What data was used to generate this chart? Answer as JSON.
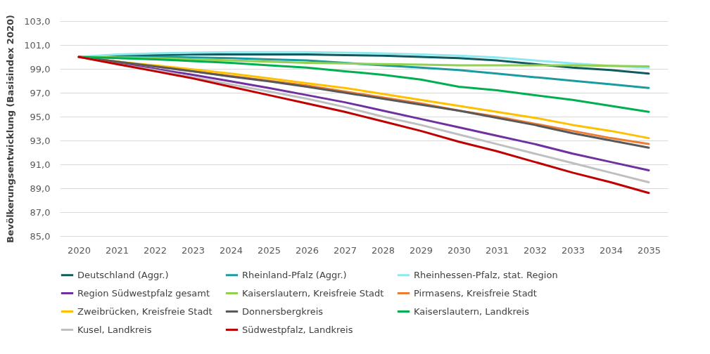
{
  "chart_data": {
    "type": "line",
    "ylabel": "Bevölkerungsentwicklung (Basisindex 2020)",
    "categories": [
      "2020",
      "2021",
      "2022",
      "2023",
      "2024",
      "2025",
      "2026",
      "2027",
      "2028",
      "2029",
      "2030",
      "2031",
      "2032",
      "2033",
      "2034",
      "2035"
    ],
    "ylim": [
      85,
      103
    ],
    "yticks": [
      {
        "value": 85,
        "label": "85,0"
      },
      {
        "value": 87,
        "label": "87,0"
      },
      {
        "value": 89,
        "label": "89,0"
      },
      {
        "value": 91,
        "label": "91,0"
      },
      {
        "value": 93,
        "label": "93,0"
      },
      {
        "value": 95,
        "label": "95,0"
      },
      {
        "value": 97,
        "label": "97,0"
      },
      {
        "value": 99,
        "label": "99,0"
      },
      {
        "value": 101,
        "label": "101,0"
      },
      {
        "value": 103,
        "label": "103,0"
      }
    ],
    "grid": "y",
    "legend": "bottom",
    "marker": "none",
    "line_style": "solid",
    "series": [
      {
        "name": "Deutschland (Aggr.)",
        "color": "#0e5a5e",
        "values": [
          100,
          100.1,
          100.15,
          100.2,
          100.2,
          100.2,
          100.2,
          100.15,
          100.1,
          100.0,
          99.9,
          99.7,
          99.4,
          99.1,
          98.9,
          98.6
        ]
      },
      {
        "name": "Rheinland-Pfalz (Aggr.)",
        "color": "#1a9ba0",
        "values": [
          100,
          100,
          100,
          99.95,
          99.9,
          99.8,
          99.7,
          99.5,
          99.3,
          99.1,
          98.9,
          98.6,
          98.3,
          98.0,
          97.7,
          97.4
        ]
      },
      {
        "name": "Rheinhessen-Pfalz, stat. Region",
        "color": "#8ee8f0",
        "values": [
          100,
          100.2,
          100.3,
          100.35,
          100.4,
          100.4,
          100.4,
          100.35,
          100.3,
          100.2,
          100.1,
          99.95,
          99.7,
          99.45,
          99.25,
          99.1
        ]
      },
      {
        "name": "Region Südwestpfalz gesamt",
        "color": "#7030a0",
        "values": [
          100,
          99.5,
          99.0,
          98.5,
          97.95,
          97.4,
          96.8,
          96.2,
          95.5,
          94.8,
          94.1,
          93.4,
          92.7,
          91.9,
          91.2,
          90.5
        ]
      },
      {
        "name": "Kaiserslautern, Kreisfreie Stadt",
        "color": "#92d050",
        "values": [
          100,
          99.95,
          99.9,
          99.8,
          99.7,
          99.6,
          99.5,
          99.45,
          99.4,
          99.35,
          99.3,
          99.3,
          99.3,
          99.3,
          99.25,
          99.2
        ]
      },
      {
        "name": "Pirmasens, Kreisfreie Stadt",
        "color": "#ed7d31",
        "values": [
          100,
          99.6,
          99.2,
          98.8,
          98.4,
          98.0,
          97.6,
          97.1,
          96.6,
          96.1,
          95.5,
          95.0,
          94.4,
          93.8,
          93.2,
          92.7
        ]
      },
      {
        "name": "Zweibrücken, Kreisfreie Stadt",
        "color": "#ffc000",
        "values": [
          100,
          99.6,
          99.3,
          98.95,
          98.6,
          98.2,
          97.8,
          97.4,
          96.9,
          96.4,
          95.9,
          95.4,
          94.9,
          94.3,
          93.8,
          93.2
        ]
      },
      {
        "name": "Donnersbergkreis",
        "color": "#595959",
        "values": [
          100,
          99.6,
          99.2,
          98.8,
          98.35,
          97.95,
          97.5,
          97.0,
          96.5,
          96.0,
          95.5,
          94.9,
          94.3,
          93.6,
          93.0,
          92.4
        ]
      },
      {
        "name": "Kaiserslautern, Landkreis",
        "color": "#00b050",
        "values": [
          100,
          99.9,
          99.8,
          99.65,
          99.5,
          99.3,
          99.1,
          98.8,
          98.5,
          98.1,
          97.5,
          97.2,
          96.8,
          96.4,
          95.9,
          95.4
        ]
      },
      {
        "name": "Kusel, Landkreis",
        "color": "#bfbfbf",
        "values": [
          100,
          99.4,
          98.9,
          98.3,
          97.7,
          97.1,
          96.5,
          95.8,
          95.0,
          94.3,
          93.5,
          92.7,
          91.9,
          91.1,
          90.3,
          89.5
        ]
      },
      {
        "name": "Südwestpfalz, Landkreis",
        "color": "#c00000",
        "values": [
          100,
          99.4,
          98.8,
          98.2,
          97.5,
          96.8,
          96.1,
          95.4,
          94.6,
          93.8,
          92.9,
          92.1,
          91.2,
          90.3,
          89.5,
          88.6
        ]
      }
    ]
  }
}
